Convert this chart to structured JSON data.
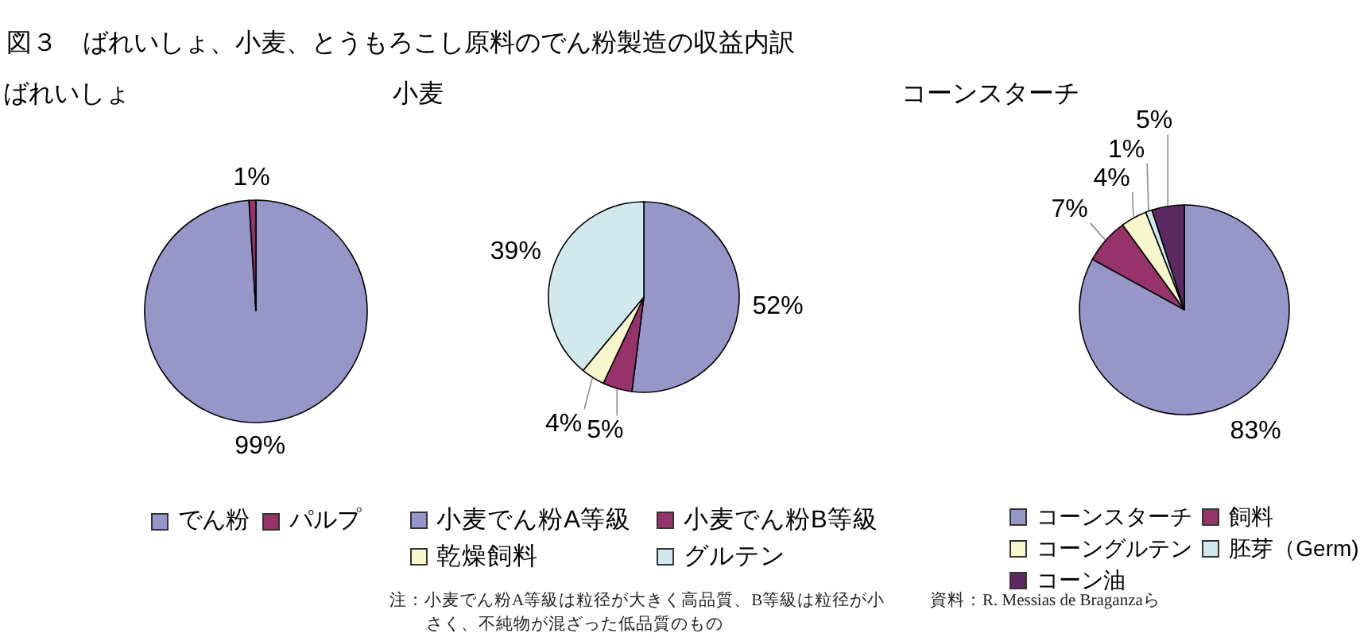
{
  "chart_data": [
    {
      "type": "pie",
      "title": "図３　ばれいしょ、小麦、とうもろこし原料のでん粉製造の収益内訳",
      "subtitle": "ばれいしょ",
      "categories": [
        "でん粉",
        "パルプ"
      ],
      "values": [
        99,
        1
      ],
      "colors": [
        "#9696c8",
        "#96336a"
      ],
      "value_labels": [
        "99%",
        "1%"
      ],
      "legend": "bottom"
    },
    {
      "type": "pie",
      "title": "小麦",
      "categories": [
        "小麦でん粉A等級",
        "小麦でん粉B等級",
        "乾燥飼料",
        "グルテン"
      ],
      "values": [
        52,
        5,
        4,
        39
      ],
      "colors": [
        "#9696c8",
        "#96336a",
        "#f8f6cc",
        "#d0e8ee"
      ],
      "value_labels": [
        "52%",
        "5%",
        "4%",
        "39%"
      ],
      "legend": "bottom",
      "annotations": [
        "注：小麦でん粉A等級は粒径が大きく高品質、B等級は粒径が小さく、不純物が混ざった低品質のもの"
      ]
    },
    {
      "type": "pie",
      "title": "コーンスターチ",
      "categories": [
        "コーンスターチ",
        "飼料",
        "コーングルテン",
        "胚芽（Germ)",
        "コーン油"
      ],
      "values": [
        83,
        7,
        4,
        1,
        5
      ],
      "colors": [
        "#9696c8",
        "#96336a",
        "#f8f6cc",
        "#d0e8ee",
        "#5c2a60"
      ],
      "value_labels": [
        "83%",
        "7%",
        "4%",
        "1%",
        "5%"
      ],
      "legend": "bottom",
      "annotations": [
        "資料：R. Messias de Braganzaら"
      ]
    }
  ]
}
